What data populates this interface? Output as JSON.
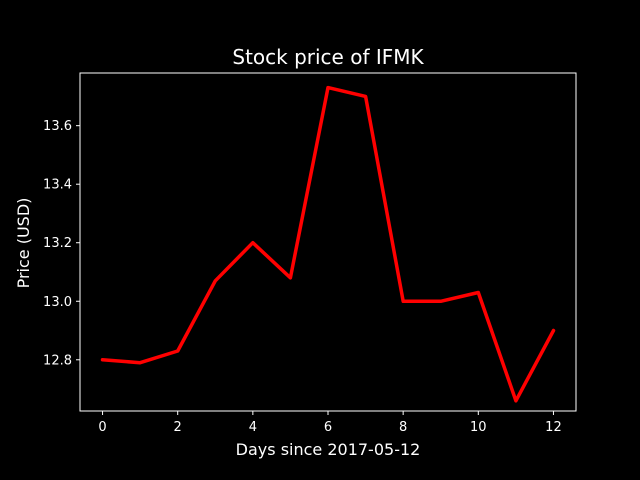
{
  "chart_data": {
    "type": "line",
    "title": "Stock price of IFMK",
    "xlabel": "Days since 2017-05-12",
    "ylabel": "Price (USD)",
    "x": [
      0,
      1,
      2,
      3,
      4,
      5,
      6,
      7,
      8,
      9,
      10,
      11,
      12
    ],
    "series": [
      {
        "values": [
          12.8,
          12.79,
          12.83,
          13.07,
          13.2,
          13.08,
          13.73,
          13.7,
          13.0,
          13.0,
          13.03,
          12.66,
          12.9
        ],
        "color": "#ff0000"
      }
    ],
    "xlim": [
      -0.6,
      12.6
    ],
    "ylim": [
      12.625,
      13.78
    ],
    "xticks": [
      0,
      2,
      4,
      6,
      8,
      10,
      12
    ],
    "xtick_labels": [
      "0",
      "2",
      "4",
      "6",
      "8",
      "10",
      "12"
    ],
    "yticks": [
      12.8,
      13.0,
      13.2,
      13.4,
      13.6
    ],
    "ytick_labels": [
      "12.8",
      "13.0",
      "13.2",
      "13.4",
      "13.6"
    ],
    "grid": false,
    "background": "#000000",
    "axis_color": "#ffffff"
  }
}
